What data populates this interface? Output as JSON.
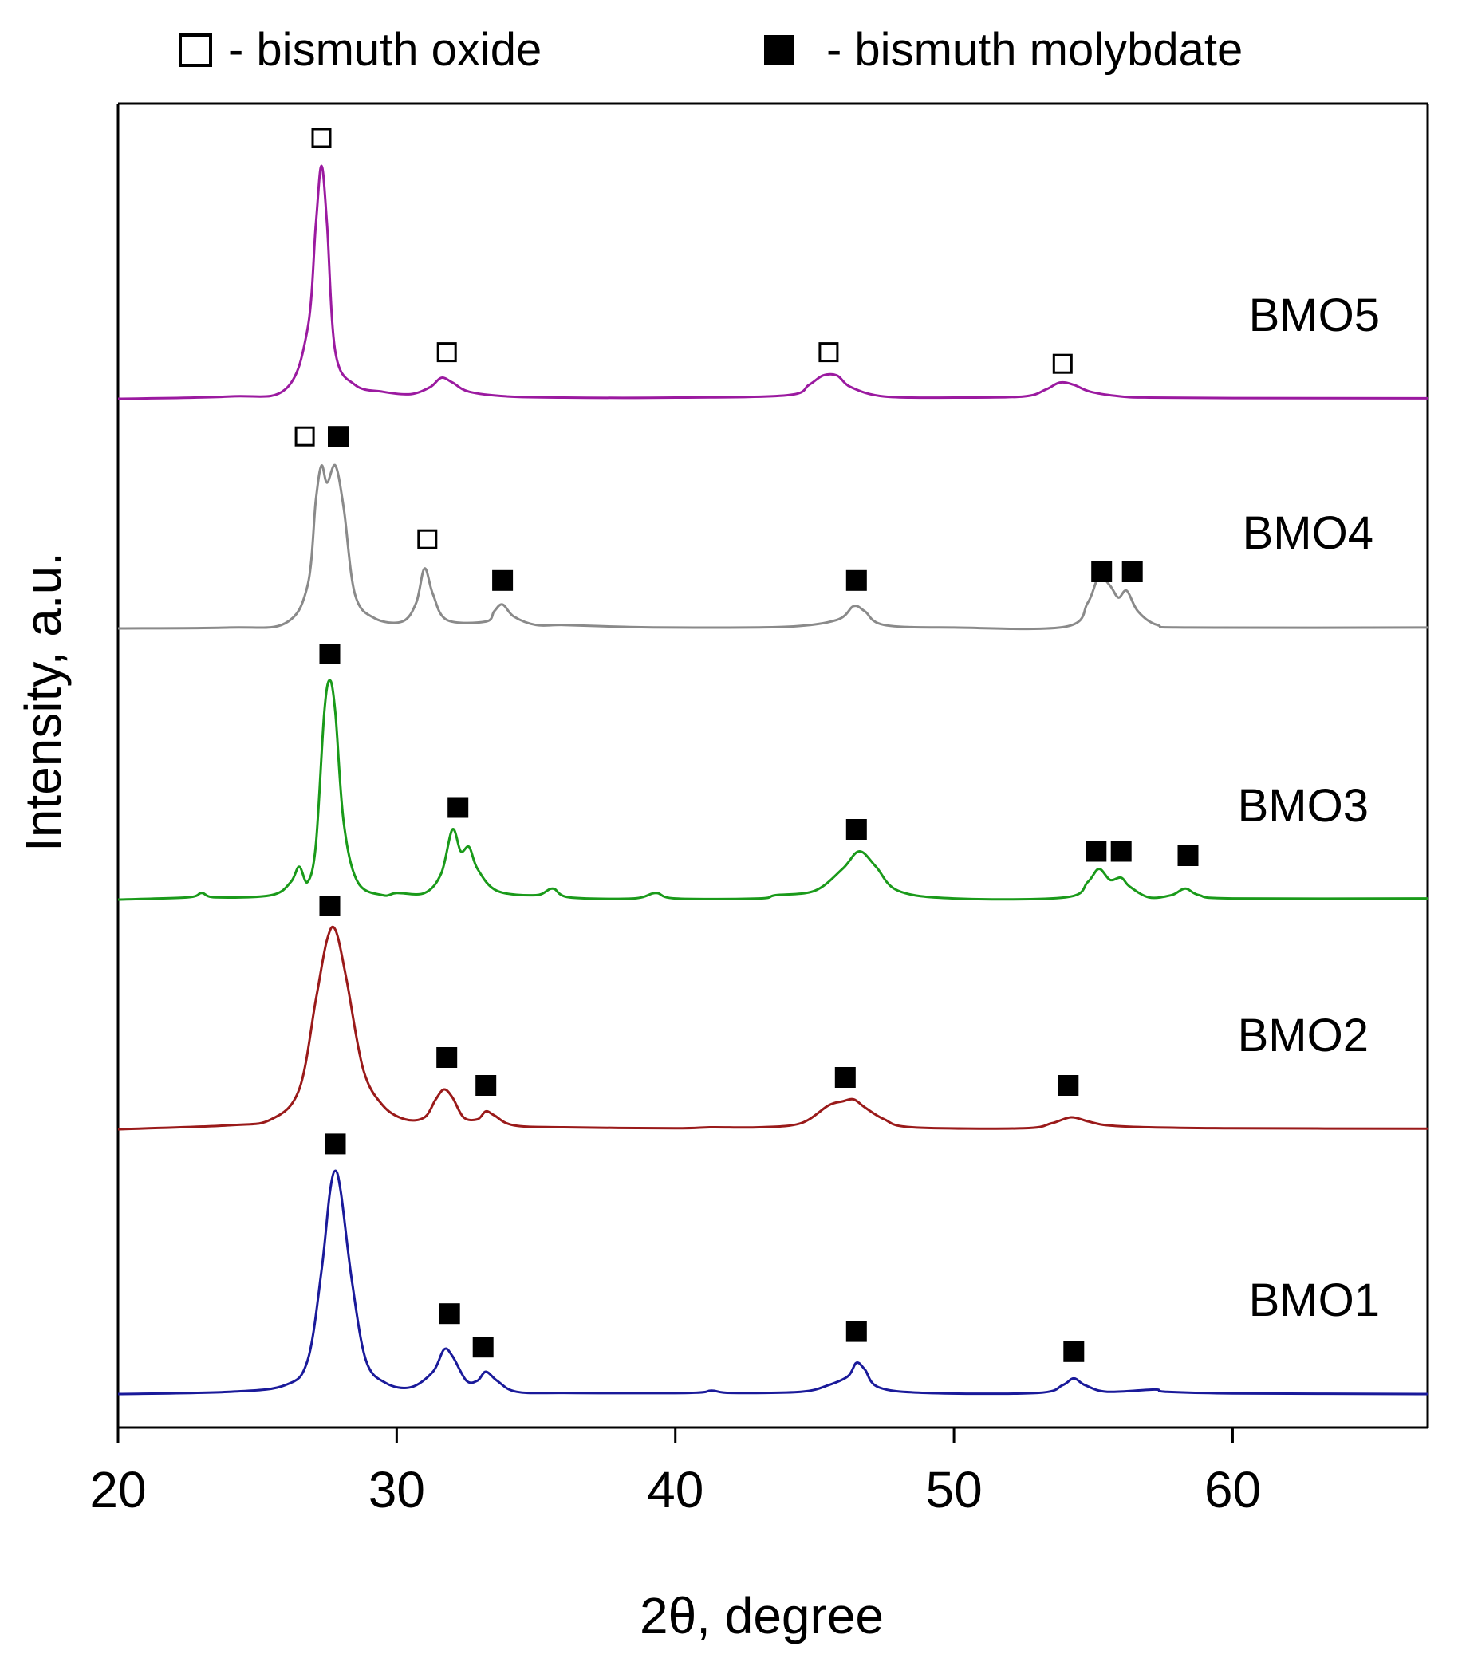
{
  "chart_data": {
    "type": "line",
    "title": "",
    "xlabel": "2θ, degree",
    "ylabel": "Intensity, a.u.",
    "xlim": [
      20,
      67
    ],
    "xticks": [
      20,
      30,
      40,
      50,
      60
    ],
    "xtick_labels": [
      "20",
      "30",
      "40",
      "50",
      "60"
    ],
    "grid": false,
    "legend": {
      "position": "top",
      "entries": [
        {
          "marker": "open-square",
          "label": "- bismuth oxide"
        },
        {
          "marker": "filled-square",
          "label": "- bismuth molybdate"
        }
      ]
    },
    "series": [
      {
        "name": "BMO5",
        "color": "#9b1aa0",
        "points": [
          [
            20,
            0.0
          ],
          [
            24,
            0.01
          ],
          [
            26,
            0.04
          ],
          [
            26.8,
            0.3
          ],
          [
            27.1,
            0.75
          ],
          [
            27.3,
            1.0
          ],
          [
            27.5,
            0.75
          ],
          [
            27.8,
            0.2
          ],
          [
            28.5,
            0.06
          ],
          [
            29.5,
            0.03
          ],
          [
            30.5,
            0.02
          ],
          [
            31.2,
            0.05
          ],
          [
            31.6,
            0.09
          ],
          [
            32.0,
            0.07
          ],
          [
            32.6,
            0.03
          ],
          [
            34,
            0.01
          ],
          [
            36,
            0.005
          ],
          [
            40,
            0.005
          ],
          [
            44,
            0.015
          ],
          [
            44.8,
            0.06
          ],
          [
            45.3,
            0.1
          ],
          [
            45.8,
            0.1
          ],
          [
            46.3,
            0.05
          ],
          [
            47.5,
            0.01
          ],
          [
            50,
            0.005
          ],
          [
            52.5,
            0.01
          ],
          [
            53.3,
            0.04
          ],
          [
            53.8,
            0.07
          ],
          [
            54.3,
            0.06
          ],
          [
            54.9,
            0.03
          ],
          [
            56,
            0.01
          ],
          [
            57,
            0.005
          ],
          [
            60,
            0.003
          ],
          [
            67,
            0.002
          ]
        ],
        "markers": [
          {
            "x": 27.3,
            "y": 1.12,
            "kind": "open"
          },
          {
            "x": 31.8,
            "y": 0.2,
            "kind": "open"
          },
          {
            "x": 45.5,
            "y": 0.2,
            "kind": "open"
          },
          {
            "x": 53.9,
            "y": 0.15,
            "kind": "open"
          }
        ]
      },
      {
        "name": "BMO4",
        "color": "#8a8a8a",
        "points": [
          [
            20,
            0.0
          ],
          [
            24,
            0.005
          ],
          [
            26,
            0.03
          ],
          [
            26.8,
            0.25
          ],
          [
            27.1,
            0.75
          ],
          [
            27.3,
            0.95
          ],
          [
            27.5,
            0.85
          ],
          [
            27.8,
            0.95
          ],
          [
            28.1,
            0.7
          ],
          [
            28.5,
            0.2
          ],
          [
            29.2,
            0.06
          ],
          [
            30.2,
            0.04
          ],
          [
            30.7,
            0.15
          ],
          [
            31.0,
            0.35
          ],
          [
            31.3,
            0.2
          ],
          [
            31.8,
            0.05
          ],
          [
            33.2,
            0.04
          ],
          [
            33.5,
            0.1
          ],
          [
            33.8,
            0.14
          ],
          [
            34.2,
            0.07
          ],
          [
            35,
            0.02
          ],
          [
            36,
            0.02
          ],
          [
            38,
            0.01
          ],
          [
            40,
            0.005
          ],
          [
            44,
            0.01
          ],
          [
            45.8,
            0.05
          ],
          [
            46.4,
            0.13
          ],
          [
            46.8,
            0.1
          ],
          [
            47.5,
            0.02
          ],
          [
            50,
            0.005
          ],
          [
            54,
            0.01
          ],
          [
            54.8,
            0.15
          ],
          [
            55.2,
            0.3
          ],
          [
            55.6,
            0.25
          ],
          [
            55.9,
            0.18
          ],
          [
            56.2,
            0.22
          ],
          [
            56.6,
            0.1
          ],
          [
            57.3,
            0.02
          ],
          [
            58.5,
            0.005
          ],
          [
            67,
            0.005
          ]
        ],
        "markers": [
          {
            "x": 26.7,
            "y": 1.12,
            "kind": "open"
          },
          {
            "x": 27.9,
            "y": 1.12,
            "kind": "filled"
          },
          {
            "x": 31.1,
            "y": 0.52,
            "kind": "open"
          },
          {
            "x": 33.8,
            "y": 0.28,
            "kind": "filled"
          },
          {
            "x": 46.5,
            "y": 0.28,
            "kind": "filled"
          },
          {
            "x": 55.3,
            "y": 0.33,
            "kind": "filled"
          },
          {
            "x": 56.4,
            "y": 0.33,
            "kind": "filled"
          }
        ]
      },
      {
        "name": "BMO3",
        "color": "#1a9a1a",
        "points": [
          [
            20,
            0.0
          ],
          [
            22.5,
            0.01
          ],
          [
            23.0,
            0.03
          ],
          [
            23.5,
            0.01
          ],
          [
            25.5,
            0.02
          ],
          [
            26.2,
            0.08
          ],
          [
            26.5,
            0.15
          ],
          [
            26.8,
            0.08
          ],
          [
            27.1,
            0.25
          ],
          [
            27.4,
            0.85
          ],
          [
            27.6,
            1.0
          ],
          [
            27.8,
            0.85
          ],
          [
            28.1,
            0.35
          ],
          [
            28.6,
            0.08
          ],
          [
            29.5,
            0.02
          ],
          [
            30,
            0.03
          ],
          [
            31,
            0.03
          ],
          [
            31.6,
            0.12
          ],
          [
            32.0,
            0.32
          ],
          [
            32.3,
            0.22
          ],
          [
            32.6,
            0.24
          ],
          [
            32.9,
            0.14
          ],
          [
            33.6,
            0.04
          ],
          [
            35,
            0.02
          ],
          [
            35.6,
            0.05
          ],
          [
            36.2,
            0.01
          ],
          [
            38.5,
            0.005
          ],
          [
            39.3,
            0.03
          ],
          [
            40,
            0.005
          ],
          [
            43,
            0.005
          ],
          [
            43.6,
            0.02
          ],
          [
            45,
            0.04
          ],
          [
            46,
            0.14
          ],
          [
            46.6,
            0.22
          ],
          [
            47.2,
            0.15
          ],
          [
            48,
            0.04
          ],
          [
            50,
            0.005
          ],
          [
            54,
            0.01
          ],
          [
            54.8,
            0.08
          ],
          [
            55.2,
            0.14
          ],
          [
            55.6,
            0.09
          ],
          [
            56.0,
            0.1
          ],
          [
            56.3,
            0.06
          ],
          [
            57,
            0.01
          ],
          [
            57.8,
            0.02
          ],
          [
            58.3,
            0.05
          ],
          [
            58.8,
            0.02
          ],
          [
            60,
            0.005
          ],
          [
            67,
            0.005
          ]
        ],
        "markers": [
          {
            "x": 27.6,
            "y": 1.12,
            "kind": "filled"
          },
          {
            "x": 32.2,
            "y": 0.42,
            "kind": "filled"
          },
          {
            "x": 46.5,
            "y": 0.32,
            "kind": "filled"
          },
          {
            "x": 55.1,
            "y": 0.22,
            "kind": "filled"
          },
          {
            "x": 56.0,
            "y": 0.22,
            "kind": "filled"
          },
          {
            "x": 58.4,
            "y": 0.2,
            "kind": "filled"
          }
        ]
      },
      {
        "name": "BMO2",
        "color": "#9a1a1a",
        "points": [
          [
            20,
            0.0
          ],
          [
            24,
            0.02
          ],
          [
            25.5,
            0.05
          ],
          [
            26.5,
            0.2
          ],
          [
            27.1,
            0.65
          ],
          [
            27.5,
            0.95
          ],
          [
            27.8,
            1.0
          ],
          [
            28.2,
            0.75
          ],
          [
            28.8,
            0.3
          ],
          [
            29.5,
            0.12
          ],
          [
            30.3,
            0.05
          ],
          [
            31,
            0.06
          ],
          [
            31.4,
            0.15
          ],
          [
            31.7,
            0.2
          ],
          [
            32.0,
            0.16
          ],
          [
            32.4,
            0.06
          ],
          [
            32.9,
            0.05
          ],
          [
            33.2,
            0.09
          ],
          [
            33.5,
            0.07
          ],
          [
            34.2,
            0.02
          ],
          [
            36,
            0.01
          ],
          [
            40,
            0.005
          ],
          [
            41.3,
            0.01
          ],
          [
            43,
            0.01
          ],
          [
            44.5,
            0.03
          ],
          [
            45.5,
            0.12
          ],
          [
            46.0,
            0.14
          ],
          [
            46.4,
            0.15
          ],
          [
            46.8,
            0.11
          ],
          [
            47.5,
            0.05
          ],
          [
            48.5,
            0.01
          ],
          [
            52.5,
            0.005
          ],
          [
            53.5,
            0.03
          ],
          [
            54.2,
            0.06
          ],
          [
            54.8,
            0.04
          ],
          [
            55.5,
            0.02
          ],
          [
            57,
            0.01
          ],
          [
            60,
            0.005
          ],
          [
            67,
            0.003
          ]
        ],
        "markers": [
          {
            "x": 27.6,
            "y": 1.12,
            "kind": "filled"
          },
          {
            "x": 31.8,
            "y": 0.36,
            "kind": "filled"
          },
          {
            "x": 33.2,
            "y": 0.22,
            "kind": "filled"
          },
          {
            "x": 46.1,
            "y": 0.26,
            "kind": "filled"
          },
          {
            "x": 54.1,
            "y": 0.22,
            "kind": "filled"
          }
        ]
      },
      {
        "name": "BMO1",
        "color": "#1a1a9a",
        "points": [
          [
            20,
            0.0
          ],
          [
            24,
            0.01
          ],
          [
            26,
            0.04
          ],
          [
            26.8,
            0.15
          ],
          [
            27.3,
            0.55
          ],
          [
            27.6,
            0.9
          ],
          [
            27.8,
            1.0
          ],
          [
            28.0,
            0.9
          ],
          [
            28.4,
            0.5
          ],
          [
            28.9,
            0.15
          ],
          [
            29.6,
            0.05
          ],
          [
            30.5,
            0.03
          ],
          [
            31.3,
            0.1
          ],
          [
            31.7,
            0.2
          ],
          [
            32.0,
            0.17
          ],
          [
            32.5,
            0.06
          ],
          [
            32.9,
            0.06
          ],
          [
            33.2,
            0.1
          ],
          [
            33.6,
            0.06
          ],
          [
            34.3,
            0.01
          ],
          [
            36,
            0.005
          ],
          [
            40.5,
            0.005
          ],
          [
            41.3,
            0.015
          ],
          [
            42,
            0.005
          ],
          [
            44.5,
            0.01
          ],
          [
            45.5,
            0.04
          ],
          [
            46.2,
            0.08
          ],
          [
            46.5,
            0.14
          ],
          [
            46.8,
            0.11
          ],
          [
            47.3,
            0.03
          ],
          [
            49,
            0.005
          ],
          [
            53,
            0.005
          ],
          [
            53.9,
            0.04
          ],
          [
            54.3,
            0.07
          ],
          [
            54.7,
            0.04
          ],
          [
            55.5,
            0.01
          ],
          [
            57.2,
            0.02
          ],
          [
            57.6,
            0.01
          ],
          [
            60,
            0.003
          ],
          [
            67,
            0.0
          ]
        ],
        "markers": [
          {
            "x": 27.8,
            "y": 1.12,
            "kind": "filled"
          },
          {
            "x": 31.9,
            "y": 0.36,
            "kind": "filled"
          },
          {
            "x": 33.1,
            "y": 0.21,
            "kind": "filled"
          },
          {
            "x": 46.5,
            "y": 0.28,
            "kind": "filled"
          },
          {
            "x": 54.3,
            "y": 0.19,
            "kind": "filled"
          }
        ]
      }
    ]
  }
}
